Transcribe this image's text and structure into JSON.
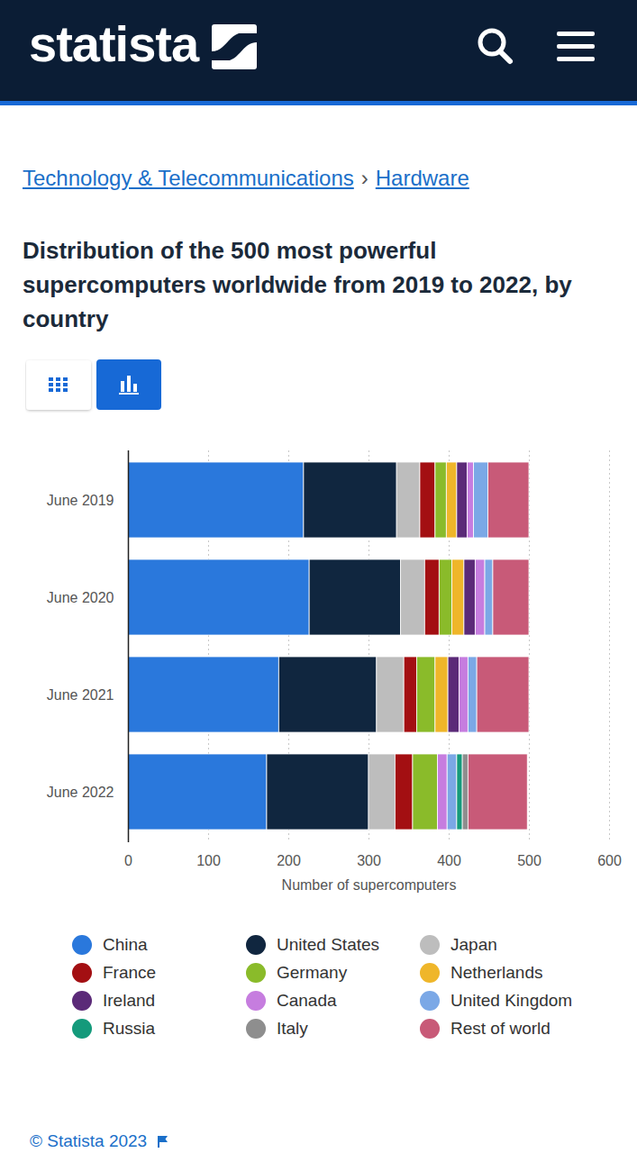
{
  "page": {
    "logo": "statista",
    "breadcrumb": [
      "Technology & Telecommunications",
      "Hardware"
    ],
    "breadcrumb_separator": "›",
    "copyright": "© Statista 2023"
  },
  "chart_data": {
    "type": "bar",
    "title": "Distribution of the 500 most powerful supercomputers worldwide from 2019 to 2022, by country",
    "orientation": "horizontal",
    "stacked": true,
    "grid": true,
    "legend": "bottom",
    "x_label": "Number of supercomputers",
    "xlim": [
      0,
      600
    ],
    "xticks": [
      0,
      100,
      200,
      300,
      400,
      500,
      600
    ],
    "categories": [
      "June 2019",
      "June 2020",
      "June 2021",
      "June 2022"
    ],
    "series": [
      {
        "name": "China",
        "color": "#2a78dc",
        "values": [
          219,
          226,
          188,
          173
        ]
      },
      {
        "name": "United States",
        "color": "#10263f",
        "values": [
          116,
          114,
          122,
          127
        ]
      },
      {
        "name": "Japan",
        "color": "#bdbdbd",
        "values": [
          29,
          30,
          34,
          33
        ]
      },
      {
        "name": "France",
        "color": "#a30f12",
        "values": [
          19,
          18,
          16,
          22
        ]
      },
      {
        "name": "Germany",
        "color": "#8abb2a",
        "values": [
          14,
          16,
          23,
          31
        ]
      },
      {
        "name": "Netherlands",
        "color": "#efb62a",
        "values": [
          13,
          15,
          16,
          0
        ]
      },
      {
        "name": "Ireland",
        "color": "#5b2a78",
        "values": [
          13,
          14,
          14,
          0
        ]
      },
      {
        "name": "Canada",
        "color": "#c67ddf",
        "values": [
          8,
          12,
          11,
          12
        ]
      },
      {
        "name": "United Kingdom",
        "color": "#7ba8e6",
        "values": [
          18,
          10,
          11,
          12
        ]
      },
      {
        "name": "Russia",
        "color": "#149a7b",
        "values": [
          0,
          0,
          0,
          7
        ]
      },
      {
        "name": "Italy",
        "color": "#8e8e8e",
        "values": [
          0,
          0,
          0,
          7
        ]
      },
      {
        "name": "Rest of world",
        "color": "#c85a78",
        "values": [
          51,
          45,
          65,
          74
        ]
      }
    ]
  }
}
